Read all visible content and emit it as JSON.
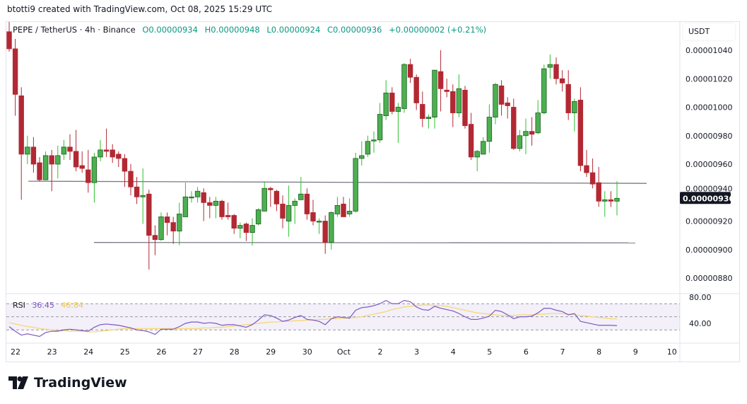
{
  "credit": "btotti9 created with TradingView.com, Oct 08, 2025 15:29 UTC",
  "legend": {
    "symbol": "PEPE / TetherUS · 4h · Binance",
    "open": "O0.00000934",
    "high": "H0.00000948",
    "low": "L0.00000924",
    "close": "C0.00000936",
    "change": "+0.00000002 (+0.21%)"
  },
  "currency": "USDT",
  "last_price_label": "0.00000936",
  "brand": "TradingView",
  "colors": {
    "up": "#4caf50",
    "down": "#b22833",
    "up_border": "#1b5e20",
    "rsi": "#7e57c2",
    "rsi_ma": "#f7d774",
    "last_price_bg": "#131722"
  },
  "rsi_legend": {
    "name": "RSI",
    "value": "36.45",
    "ma_value": "46.84"
  },
  "chart_data": {
    "type": "candlestick",
    "interval": "4h",
    "price_axis": {
      "ticks": [
        "0.00001040",
        "0.00001020",
        "0.00001000",
        "0.00000980",
        "0.00000960",
        "0.00000940",
        "0.00000920",
        "0.00000900",
        "0.00000880"
      ],
      "ylim": [
        8.72e-06,
        1.06e-05
      ]
    },
    "time_axis": {
      "ticks": [
        "22",
        "23",
        "24",
        "25",
        "26",
        "27",
        "28",
        "29",
        "30",
        "Oct",
        "2",
        "3",
        "4",
        "5",
        "6",
        "7",
        "8",
        "9",
        "10"
      ]
    },
    "horizontal_lines": [
      {
        "from": 9.48e-06,
        "to": 9.465e-06
      },
      {
        "from": 9.05e-06,
        "to": 9.047e-06
      }
    ],
    "candles": [
      [
        1.053e-05,
        1.06e-05,
        1.039e-05,
        1.041e-05
      ],
      [
        1.041e-05,
        1.048e-05,
        9.94e-06,
        1.009e-05
      ],
      [
        1.008e-05,
        1.014e-05,
        9.35e-06,
        9.67e-06
      ],
      [
        9.67e-06,
        9.8e-06,
        9.6e-06,
        9.72e-06
      ],
      [
        9.72e-06,
        9.79e-06,
        9.54e-06,
        9.6e-06
      ],
      [
        9.61e-06,
        9.65e-06,
        9.48e-06,
        9.49e-06
      ],
      [
        9.49e-06,
        9.69e-06,
        9.49e-06,
        9.66e-06
      ],
      [
        9.66e-06,
        9.7e-06,
        9.41e-06,
        9.6e-06
      ],
      [
        9.6e-06,
        9.73e-06,
        9.5e-06,
        9.66e-06
      ],
      [
        9.67e-06,
        9.77e-06,
        9.63e-06,
        9.72e-06
      ],
      [
        9.72e-06,
        9.81e-06,
        9.63e-06,
        9.69e-06
      ],
      [
        9.69e-06,
        9.84e-06,
        9.55e-06,
        9.58e-06
      ],
      [
        9.59e-06,
        9.69e-06,
        9.54e-06,
        9.57e-06
      ],
      [
        9.56e-06,
        9.7e-06,
        9.4e-06,
        9.47e-06
      ],
      [
        9.47e-06,
        9.68e-06,
        9.33e-06,
        9.65e-06
      ],
      [
        9.65e-06,
        9.77e-06,
        9.62e-06,
        9.7e-06
      ],
      [
        9.7e-06,
        9.85e-06,
        9.65e-06,
        9.69e-06
      ],
      [
        9.7e-06,
        9.74e-06,
        9.61e-06,
        9.65e-06
      ],
      [
        9.67e-06,
        9.69e-06,
        9.58e-06,
        9.64e-06
      ],
      [
        9.64e-06,
        9.67e-06,
        9.44e-06,
        9.55e-06
      ],
      [
        9.55e-06,
        9.6e-06,
        9.38e-06,
        9.44e-06
      ],
      [
        9.44e-06,
        9.51e-06,
        9.32e-06,
        9.37e-06
      ],
      [
        9.37e-06,
        9.57e-06,
        9.18e-06,
        9.38e-06
      ],
      [
        9.39e-06,
        9.42e-06,
        8.86e-06,
        9.1e-06
      ],
      [
        9.1e-06,
        9.17e-06,
        8.96e-06,
        9.07e-06
      ],
      [
        9.07e-06,
        9.26e-06,
        9.06e-06,
        9.23e-06
      ],
      [
        9.23e-06,
        9.26e-06,
        9.1e-06,
        9.19e-06
      ],
      [
        9.19e-06,
        9.23e-06,
        9.04e-06,
        9.13e-06
      ],
      [
        9.13e-06,
        9.33e-06,
        9.03e-06,
        9.25e-06
      ],
      [
        9.23e-06,
        9.47e-06,
        9.23e-06,
        9.37e-06
      ],
      [
        9.37e-06,
        9.41e-06,
        9.33e-06,
        9.37e-06
      ],
      [
        9.37e-06,
        9.44e-06,
        9.33e-06,
        9.41e-06
      ],
      [
        9.4e-06,
        9.43e-06,
        9.2e-06,
        9.33e-06
      ],
      [
        9.33e-06,
        9.37e-06,
        9.22e-06,
        9.31e-06
      ],
      [
        9.31e-06,
        9.37e-06,
        9.22e-06,
        9.34e-06
      ],
      [
        9.34e-06,
        9.35e-06,
        9.21e-06,
        9.23e-06
      ],
      [
        9.24e-06,
        9.33e-06,
        9.21e-06,
        9.23e-06
      ],
      [
        9.24e-06,
        9.25e-06,
        9.11e-06,
        9.15e-06
      ],
      [
        9.15e-06,
        9.19e-06,
        9.08e-06,
        9.17e-06
      ],
      [
        9.18e-06,
        9.19e-06,
        9.06e-06,
        9.12e-06
      ],
      [
        9.12e-06,
        9.22e-06,
        9.03e-06,
        9.17e-06
      ],
      [
        9.18e-06,
        9.29e-06,
        9.17e-06,
        9.28e-06
      ],
      [
        9.27e-06,
        9.48e-06,
        9.27e-06,
        9.43e-06
      ],
      [
        9.43e-06,
        9.44e-06,
        9.3e-06,
        9.42e-06
      ],
      [
        9.41e-06,
        9.42e-06,
        9.27e-06,
        9.32e-06
      ],
      [
        9.32e-06,
        9.38e-06,
        9.15e-06,
        9.22e-06
      ],
      [
        9.2e-06,
        9.45e-06,
        9.09e-06,
        9.31e-06
      ],
      [
        9.31e-06,
        9.36e-06,
        9.18e-06,
        9.34e-06
      ],
      [
        9.35e-06,
        9.51e-06,
        9.35e-06,
        9.39e-06
      ],
      [
        9.39e-06,
        9.43e-06,
        9.21e-06,
        9.25e-06
      ],
      [
        9.26e-06,
        9.35e-06,
        9.17e-06,
        9.2e-06
      ],
      [
        9.2e-06,
        9.22e-06,
        9.11e-06,
        9.2e-06
      ],
      [
        9.2e-06,
        9.24e-06,
        8.97e-06,
        9.05e-06
      ],
      [
        9.05e-06,
        9.27e-06,
        9e-06,
        9.26e-06
      ],
      [
        9.25e-06,
        9.37e-06,
        9.23e-06,
        9.31e-06
      ],
      [
        9.32e-06,
        9.37e-06,
        9.23e-06,
        9.23e-06
      ],
      [
        9.25e-06,
        9.36e-06,
        9.23e-06,
        9.27e-06
      ],
      [
        9.27e-06,
        9.68e-06,
        9.26e-06,
        9.64e-06
      ],
      [
        9.64e-06,
        9.76e-06,
        9.59e-06,
        9.66e-06
      ],
      [
        9.67e-06,
        9.8e-06,
        9.65e-06,
        9.76e-06
      ],
      [
        9.77e-06,
        9.83e-06,
        9.68e-06,
        9.77e-06
      ],
      [
        9.77e-06,
        1.003e-05,
        9.75e-06,
        9.95e-06
      ],
      [
        9.94e-06,
        1.019e-05,
        9.91e-06,
        1.01e-05
      ],
      [
        1.01e-05,
        1.014e-05,
        9.95e-06,
        9.97e-06
      ],
      [
        9.97e-06,
        1.003e-05,
        9.75e-06,
        1e-05
      ],
      [
        9.99e-06,
        1.031e-05,
        9.96e-06,
        1.03e-05
      ],
      [
        1.03e-05,
        1.034e-05,
        1.017e-05,
        1.021e-05
      ],
      [
        1.021e-05,
        1.023e-05,
        9.98e-06,
        1.003e-05
      ],
      [
        1.002e-05,
        1.011e-05,
        9.86e-06,
        9.92e-06
      ],
      [
        9.92e-06,
        9.95e-06,
        9.85e-06,
        9.93e-06
      ],
      [
        9.93e-06,
        1.026e-05,
        9.85e-06,
        1.026e-05
      ],
      [
        1.025e-05,
        1.04e-05,
        9.97e-06,
        1.013e-05
      ],
      [
        1.012e-05,
        1.02e-05,
        1.007e-05,
        1.011e-05
      ],
      [
        1.011e-05,
        1.016e-05,
        9.86e-06,
        9.96e-06
      ],
      [
        9.96e-06,
        1.023e-05,
        9.93e-06,
        1.013e-05
      ],
      [
        1.012e-05,
        1.015e-05,
        9.85e-06,
        9.87e-06
      ],
      [
        9.88e-06,
        9.96e-06,
        9.63e-06,
        9.65e-06
      ],
      [
        9.65e-06,
        9.7e-06,
        9.55e-06,
        9.69e-06
      ],
      [
        9.67e-06,
        9.79e-06,
        9.67e-06,
        9.76e-06
      ],
      [
        9.76e-06,
        1.002e-05,
        9.68e-06,
        9.93e-06
      ],
      [
        9.93e-06,
        1.017e-05,
        9.88e-06,
        1.016e-05
      ],
      [
        1.015e-05,
        1.019e-05,
        9.94e-06,
        1.002e-05
      ],
      [
        1.003e-05,
        1.007e-05,
        9.92e-06,
        1.001e-05
      ],
      [
        1e-05,
        1.006e-05,
        9.7e-06,
        9.71e-06
      ],
      [
        9.71e-06,
        9.84e-06,
        9.69e-06,
        9.8e-06
      ],
      [
        9.8e-06,
        9.92e-06,
        9.67e-06,
        9.83e-06
      ],
      [
        9.83e-06,
        9.93e-06,
        9.73e-06,
        9.81e-06
      ],
      [
        9.82e-06,
        1.005e-05,
        9.81e-06,
        9.96e-06
      ],
      [
        9.96e-06,
        1.03e-05,
        9.95e-06,
        1.027e-05
      ],
      [
        1.028e-05,
        1.037e-05,
        1.02e-05,
        1.03e-05
      ],
      [
        1.03e-05,
        1.035e-05,
        1.016e-05,
        1.02e-05
      ],
      [
        1.02e-05,
        1.026e-05,
        1.011e-05,
        1.017e-05
      ],
      [
        1.016e-05,
        1.026e-05,
        9.91e-06,
        9.96e-06
      ],
      [
        9.96e-06,
        1.006e-05,
        9.83e-06,
        1.004e-05
      ],
      [
        1.005e-05,
        1.014e-05,
        9.55e-06,
        9.59e-06
      ],
      [
        9.59e-06,
        9.7e-06,
        9.51e-06,
        9.54e-06
      ],
      [
        9.54e-06,
        9.64e-06,
        9.43e-06,
        9.46e-06
      ],
      [
        9.47e-06,
        9.58e-06,
        9.3e-06,
        9.34e-06
      ],
      [
        9.34e-06,
        9.41e-06,
        9.23e-06,
        9.35e-06
      ],
      [
        9.35e-06,
        9.41e-06,
        9.3e-06,
        9.34e-06
      ],
      [
        9.34e-06,
        9.48e-06,
        9.24e-06,
        9.36e-06
      ]
    ],
    "rsi": {
      "axis_ticks": [
        "80.00",
        "40.00"
      ],
      "levels": [
        70,
        50,
        30
      ],
      "ylim": [
        16,
        83
      ],
      "values": [
        35,
        28,
        22,
        24,
        22,
        20,
        26,
        28,
        28,
        30,
        31,
        30,
        29,
        28,
        34,
        38,
        39,
        38,
        37,
        35,
        33,
        30,
        29,
        27,
        23,
        31,
        31,
        31,
        35,
        40,
        42,
        42,
        40,
        41,
        40,
        37,
        38,
        38,
        36,
        34,
        38,
        45,
        53,
        52,
        48,
        43,
        45,
        49,
        52,
        46,
        45,
        43,
        38,
        47,
        50,
        49,
        48,
        60,
        64,
        65,
        67,
        70,
        75,
        70,
        70,
        75,
        73,
        65,
        61,
        60,
        66,
        63,
        61,
        59,
        55,
        50,
        46,
        46,
        48,
        51,
        60,
        58,
        53,
        47,
        50,
        50,
        51,
        56,
        63,
        63,
        60,
        58,
        53,
        55,
        43,
        41,
        39,
        37,
        37,
        37,
        36.45
      ],
      "ma": [
        41,
        39,
        37,
        35,
        34,
        32,
        31,
        30,
        29,
        29,
        28,
        28,
        28,
        27,
        27,
        28,
        29,
        30,
        31,
        32,
        32,
        32,
        32,
        32,
        32,
        32,
        32,
        32,
        32,
        32,
        32,
        32,
        33,
        33,
        34,
        34,
        35,
        36,
        37,
        38,
        39,
        40,
        41,
        42,
        42,
        43,
        43,
        44,
        44,
        45,
        45,
        46,
        46,
        47,
        47,
        48,
        48,
        49,
        50,
        52,
        54,
        56,
        58,
        61,
        63,
        65,
        66,
        67,
        68,
        68,
        67,
        67,
        66,
        64,
        62,
        60,
        58,
        56,
        55,
        54,
        53,
        52,
        52,
        52,
        53,
        53,
        53,
        54,
        54,
        55,
        55,
        55,
        54,
        53,
        52,
        51,
        50,
        49,
        48,
        47,
        46.84
      ]
    }
  }
}
